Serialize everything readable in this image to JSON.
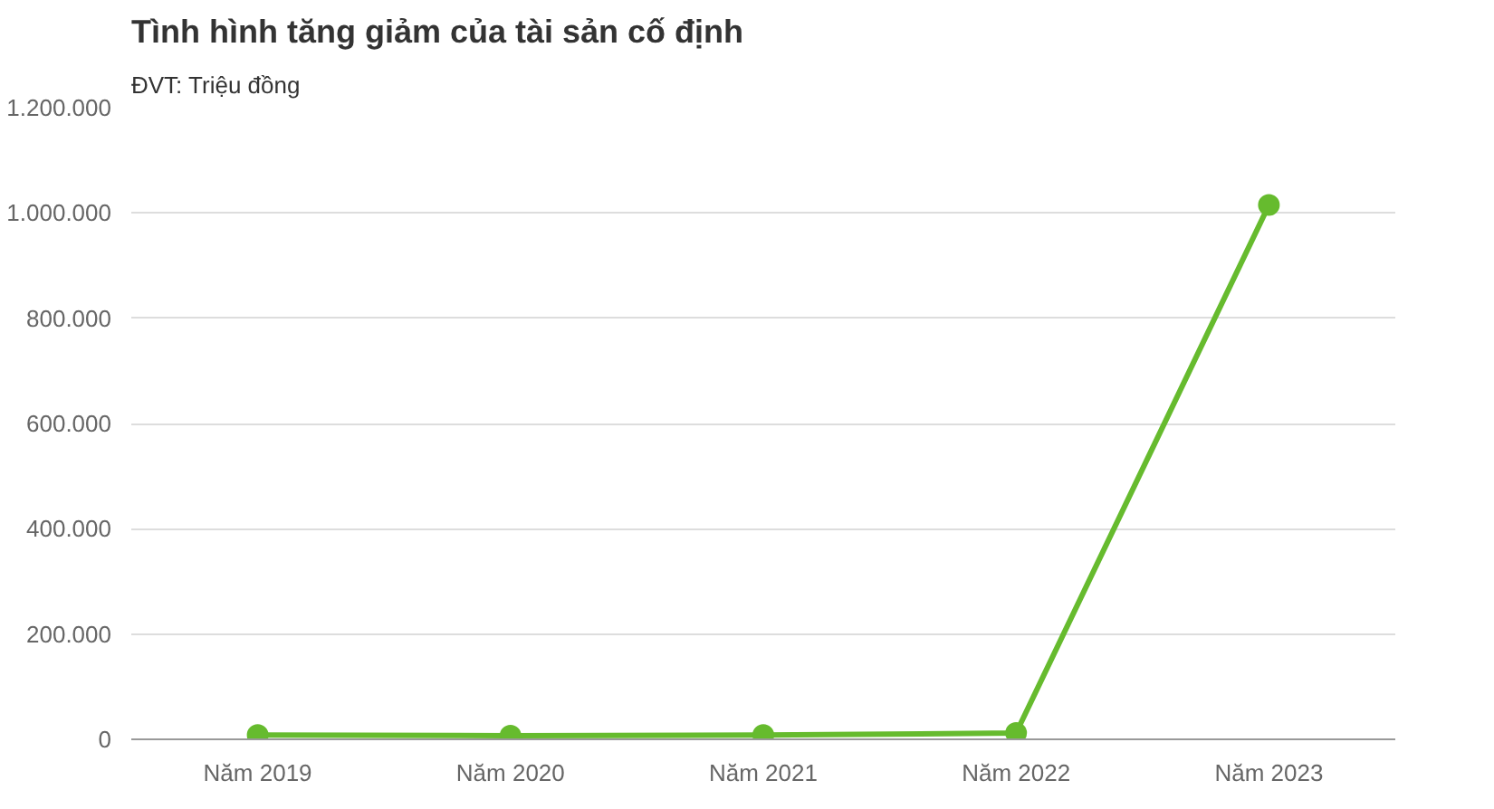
{
  "chart_data": {
    "type": "line",
    "title": "Tình hình tăng giảm của tài sản cố định",
    "subtitle": "ĐVT: Triệu đồng",
    "categories": [
      "Năm 2019",
      "Năm 2020",
      "Năm 2021",
      "Năm 2022",
      "Năm 2023"
    ],
    "series": [
      {
        "color": "#66bb2e",
        "values": [
          8000,
          7000,
          8000,
          12000,
          1015000
        ]
      }
    ],
    "ylim": [
      0,
      1200000
    ],
    "yticks": [
      {
        "value": 0,
        "label": "0"
      },
      {
        "value": 200000,
        "label": "200.000"
      },
      {
        "value": 400000,
        "label": "400.000"
      },
      {
        "value": 600000,
        "label": "600.000"
      },
      {
        "value": 800000,
        "label": "800.000"
      },
      {
        "value": 1000000,
        "label": "1.000.000"
      },
      {
        "value": 1200000,
        "label": "1.200.000"
      }
    ],
    "grid": "y",
    "marker": "circle",
    "line_style": "solid"
  }
}
